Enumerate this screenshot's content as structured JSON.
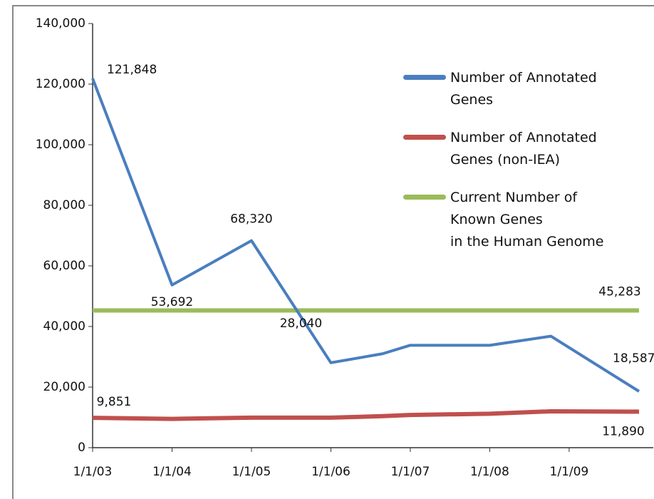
{
  "chart_data": {
    "type": "line",
    "x": [
      2003,
      2004,
      2005,
      2006,
      2006.65,
      2007,
      2008,
      2008.77,
      2009.88
    ],
    "xlim": [
      2003,
      2009.88
    ],
    "xticks": [
      {
        "value": 2003,
        "label": "1/1/03"
      },
      {
        "value": 2004,
        "label": "1/1/04"
      },
      {
        "value": 2005,
        "label": "1/1/05"
      },
      {
        "value": 2006,
        "label": "1/1/06"
      },
      {
        "value": 2007,
        "label": "1/1/07"
      },
      {
        "value": 2008,
        "label": "1/1/08"
      },
      {
        "value": 2009,
        "label": "1/1/09"
      }
    ],
    "ylim": [
      0,
      140000
    ],
    "yticks": [
      0,
      {
        "value": 20000,
        "label": "20,000"
      },
      {
        "value": 40000,
        "label": "40,000"
      },
      {
        "value": 60000,
        "label": "60,000"
      },
      {
        "value": 80000,
        "label": "80,000"
      },
      {
        "value": 100000,
        "label": "100,000"
      },
      {
        "value": 120000,
        "label": "120,000"
      },
      {
        "value": 140000,
        "label": "140,000"
      }
    ],
    "series": [
      {
        "name": "Number of Annotated\nGenes",
        "color": "#4a7ebf",
        "values": [
          121848,
          53692,
          68320,
          28040,
          31000,
          33800,
          33800,
          36800,
          18587
        ],
        "value_labels": [
          "121,848",
          "53,692",
          "68,320",
          "28,040",
          null,
          null,
          null,
          null,
          "18,587"
        ]
      },
      {
        "name": "Number of Annotated\nGenes (non-IEA)",
        "color": "#c0504d",
        "values": [
          9851,
          9500,
          9900,
          9900,
          10400,
          10800,
          11200,
          12000,
          11890
        ],
        "value_labels": [
          "9,851",
          null,
          null,
          null,
          null,
          null,
          null,
          null,
          "11,890"
        ]
      },
      {
        "name": "Current Number of\nKnown Genes\nin the Human Genome",
        "color": "#9bbb59",
        "x": [
          2003,
          2009.88
        ],
        "values": [
          45283,
          45283
        ],
        "value_labels": [
          null,
          "45,283"
        ]
      }
    ]
  }
}
